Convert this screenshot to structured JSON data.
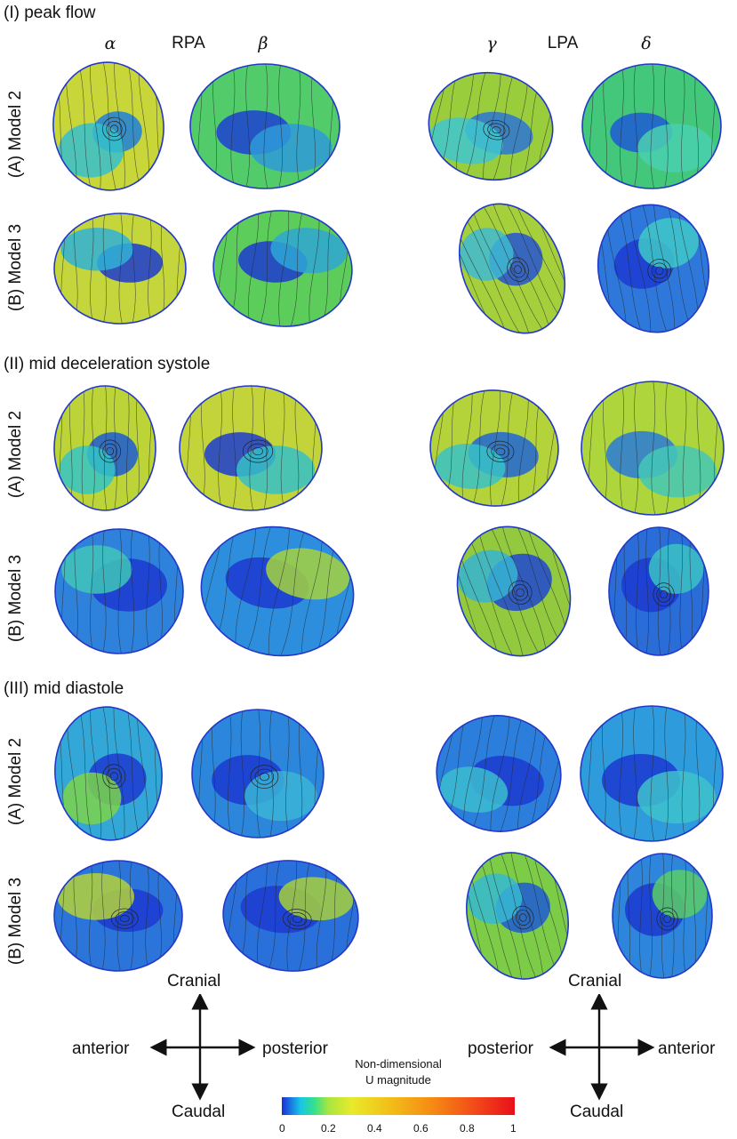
{
  "sections": [
    {
      "title": "(I) peak flow",
      "rows": [
        {
          "label": "(A) Model 2",
          "panels": [
            {
              "id": "s1-a2-alpha",
              "base": "#c9d63a",
              "spots": [
                [
                  "#1d7fdc",
                  0.2
                ],
                [
                  "#36c0cc",
                  0.35
                ]
              ],
              "vortex": true
            },
            {
              "id": "s1-a2-beta",
              "base": "#52cc6a",
              "spots": [
                [
                  "#1c3fd1",
                  0.25
                ],
                [
                  "#2f9ad8",
                  0.3
                ]
              ],
              "vortex": false
            },
            {
              "id": "s1-a2-gamma",
              "base": "#9acd3c",
              "spots": [
                [
                  "#2b74d6",
                  0.3
                ],
                [
                  "#3fc6d0",
                  0.35
                ]
              ],
              "vortex": true
            },
            {
              "id": "s1-a2-delta",
              "base": "#43c77a",
              "spots": [
                [
                  "#1f5ad6",
                  0.2
                ],
                [
                  "#4ad0b0",
                  0.3
                ]
              ],
              "vortex": false
            }
          ]
        },
        {
          "label": "(B) Model 3",
          "panels": [
            {
              "id": "s1-b3-alpha",
              "base": "#c4d63c",
              "spots": [
                [
                  "#1c3ad0",
                  0.25
                ],
                [
                  "#30b2d6",
                  0.3
                ]
              ],
              "vortex": false
            },
            {
              "id": "s1-b3-beta",
              "base": "#5ccc5a",
              "spots": [
                [
                  "#1c3ad0",
                  0.25
                ],
                [
                  "#2fa6d6",
                  0.3
                ]
              ],
              "vortex": false
            },
            {
              "id": "s1-b3-gamma",
              "base": "#a6cf3c",
              "spots": [
                [
                  "#2454d4",
                  0.3
                ],
                [
                  "#3ebad2",
                  0.3
                ]
              ],
              "vortex": true
            },
            {
              "id": "s1-b3-delta",
              "base": "#2e78dc",
              "spots": [
                [
                  "#1c3ad0",
                  0.3
                ],
                [
                  "#40c8c8",
                  0.3
                ]
              ],
              "vortex": true
            }
          ]
        }
      ]
    },
    {
      "title": "(II) mid deceleration systole",
      "rows": [
        {
          "label": "(A) Model 2",
          "panels": [
            {
              "id": "s2-a2-alpha",
              "base": "#bcd438",
              "spots": [
                [
                  "#1c5ad4",
                  0.25
                ],
                [
                  "#36c4c6",
                  0.3
                ]
              ],
              "vortex": true
            },
            {
              "id": "s2-a2-beta",
              "base": "#c2d43a",
              "spots": [
                [
                  "#1d3cd0",
                  0.25
                ],
                [
                  "#36c0c8",
                  0.3
                ]
              ],
              "vortex": true
            },
            {
              "id": "s2-a2-gamma",
              "base": "#b4d23a",
              "spots": [
                [
                  "#2066d6",
                  0.3
                ],
                [
                  "#38c2c8",
                  0.3
                ]
              ],
              "vortex": true
            },
            {
              "id": "s2-a2-delta",
              "base": "#aed63c",
              "spots": [
                [
                  "#2a7ad8",
                  0.25
                ],
                [
                  "#44c8b6",
                  0.3
                ]
              ],
              "vortex": false
            }
          ]
        },
        {
          "label": "(B) Model 3",
          "panels": [
            {
              "id": "s2-b3-alpha",
              "base": "#2f82dc",
              "spots": [
                [
                  "#1c3ad0",
                  0.35
                ],
                [
                  "#3fc6b8",
                  0.3
                ]
              ],
              "vortex": false
            },
            {
              "id": "s2-b3-beta",
              "base": "#2e8ede",
              "spots": [
                [
                  "#1c3ad0",
                  0.3
                ],
                [
                  "#a4d23e",
                  0.3
                ]
              ],
              "vortex": false
            },
            {
              "id": "s2-b3-gamma",
              "base": "#93c93e",
              "spots": [
                [
                  "#1e46d2",
                  0.35
                ],
                [
                  "#36b4d2",
                  0.3
                ]
              ],
              "vortex": true
            },
            {
              "id": "s2-b3-delta",
              "base": "#2a6cd8",
              "spots": [
                [
                  "#1c3ad0",
                  0.35
                ],
                [
                  "#3cc2c6",
                  0.3
                ]
              ],
              "vortex": true
            }
          ]
        }
      ]
    },
    {
      "title": "(III) mid diastole",
      "rows": [
        {
          "label": "(A) Model 2",
          "panels": [
            {
              "id": "s3-a2-alpha",
              "base": "#33a8d8",
              "spots": [
                [
                  "#1c3ad0",
                  0.3
                ],
                [
                  "#7cd44a",
                  0.3
                ]
              ],
              "vortex": true
            },
            {
              "id": "s3-a2-beta",
              "base": "#2b86dc",
              "spots": [
                [
                  "#1c3ad0",
                  0.3
                ],
                [
                  "#3ab4d6",
                  0.3
                ]
              ],
              "vortex": true
            },
            {
              "id": "s3-a2-gamma",
              "base": "#2b7edb",
              "spots": [
                [
                  "#1c3ad0",
                  0.35
                ],
                [
                  "#3cbcd0",
                  0.3
                ]
              ],
              "vortex": false
            },
            {
              "id": "s3-a2-delta",
              "base": "#2e9cdc",
              "spots": [
                [
                  "#1c3ad0",
                  0.3
                ],
                [
                  "#3ec2cc",
                  0.3
                ]
              ],
              "vortex": false
            }
          ]
        },
        {
          "label": "(B) Model 3",
          "panels": [
            {
              "id": "s3-b3-alpha",
              "base": "#2a74da",
              "spots": [
                [
                  "#1c3ad0",
                  0.3
                ],
                [
                  "#b4d23a",
                  0.35
                ]
              ],
              "vortex": true
            },
            {
              "id": "s3-b3-beta",
              "base": "#2a70da",
              "spots": [
                [
                  "#1c3ad0",
                  0.35
                ],
                [
                  "#a6cf3c",
                  0.3
                ]
              ],
              "vortex": true
            },
            {
              "id": "s3-b3-gamma",
              "base": "#7ccc48",
              "spots": [
                [
                  "#1f5ad6",
                  0.3
                ],
                [
                  "#36b8d2",
                  0.3
                ]
              ],
              "vortex": true
            },
            {
              "id": "s3-b3-delta",
              "base": "#2d86dc",
              "spots": [
                [
                  "#1c3ad0",
                  0.35
                ],
                [
                  "#5ccc66",
                  0.3
                ]
              ],
              "vortex": true
            }
          ]
        }
      ]
    }
  ],
  "columns": {
    "alpha": "α",
    "rpa": "RPA",
    "beta": "β",
    "gamma": "γ",
    "lpa": "LPA",
    "delta": "δ"
  },
  "directions_left": {
    "top": "Cranial",
    "bottom": "Caudal",
    "left": "anterior",
    "right": "posterior"
  },
  "directions_right": {
    "top": "Cranial",
    "bottom": "Caudal",
    "left": "posterior",
    "right": "anterior"
  },
  "colorbar": {
    "title_line1": "Non-dimensional",
    "title_line2": "U magnitude",
    "ticks": [
      "0",
      "0.2",
      "0.4",
      "0.6",
      "0.8",
      "1"
    ],
    "min": 0,
    "max": 1
  }
}
